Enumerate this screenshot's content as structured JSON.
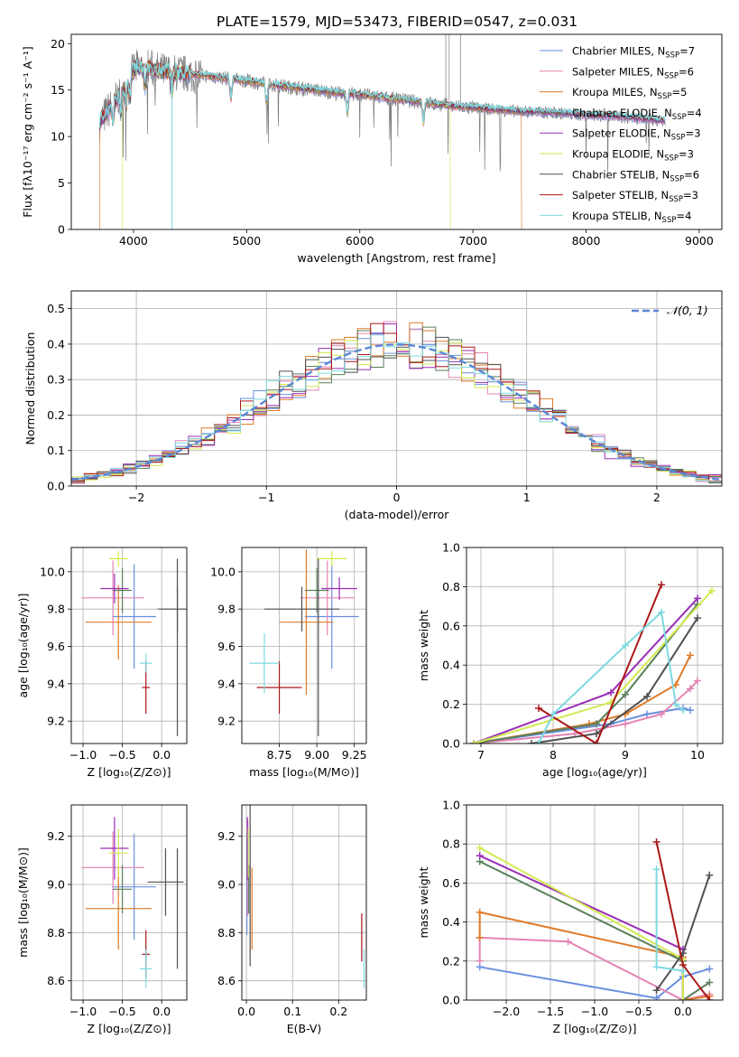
{
  "figure": {
    "title": "PLATE=1579, MJD=53473, FIBERID=0547, z=0.031"
  },
  "palette": [
    "#6a8fde",
    "#e483b4",
    "#e07a28",
    "#5a7f5a",
    "#9a2eb6",
    "#d2ea50",
    "#505050",
    "#aa1818",
    "#7ed9e0"
  ],
  "chart_data": [
    {
      "id": "spectrum",
      "type": "line",
      "title": "PLATE=1579, MJD=53473, FIBERID=0547, z=0.031",
      "xlabel": "wavelength [Angstrom, rest frame]",
      "ylabel": "Flux [fλ10⁻¹⁷ erg cm⁻² s⁻¹ A⁻¹]",
      "xlim": [
        3450,
        9200
      ],
      "ylim": [
        0,
        21
      ],
      "xticks": [
        4000,
        5000,
        6000,
        7000,
        8000,
        9000
      ],
      "yticks": [
        0,
        5,
        10,
        15,
        20
      ],
      "grid": false,
      "legend_position": "top-right",
      "data_continuum": {
        "x": [
          3700,
          3800,
          3900,
          4000,
          4100,
          4200,
          4400,
          4600,
          4800,
          5000,
          5200,
          5400,
          5600,
          5800,
          6000,
          6200,
          6400,
          6600,
          6800,
          7000,
          7200,
          7400,
          7600,
          7800,
          8000,
          8200,
          8400,
          8600,
          8700
        ],
        "y": [
          11.5,
          13.2,
          15.0,
          17.2,
          17.6,
          17.1,
          16.8,
          16.6,
          16.3,
          16.0,
          15.6,
          15.3,
          15.0,
          14.7,
          14.5,
          14.2,
          13.9,
          13.6,
          13.3,
          13.1,
          12.9,
          12.7,
          12.6,
          12.5,
          12.3,
          12.2,
          12.0,
          11.8,
          11.7
        ]
      },
      "series": [
        {
          "name": "Chabrier MILES, N_SSP=7",
          "name_main": "Chabrier MILES, N",
          "name_sub": "SSP",
          "name_tail": "=7"
        },
        {
          "name": "Salpeter MILES, N_SSP=6",
          "name_main": "Salpeter MILES, N",
          "name_sub": "SSP",
          "name_tail": "=6"
        },
        {
          "name": "Kroupa MILES, N_SSP=5",
          "name_main": "Kroupa MILES, N",
          "name_sub": "SSP",
          "name_tail": "=5"
        },
        {
          "name": "Chabrier ELODIE, N_SSP=4",
          "name_main": "Chabrier ELODIE, N",
          "name_sub": "SSP",
          "name_tail": "=4"
        },
        {
          "name": "Salpeter ELODIE, N_SSP=3",
          "name_main": "Salpeter ELODIE, N",
          "name_sub": "SSP",
          "name_tail": "=3"
        },
        {
          "name": "Kroupa ELODIE, N_SSP=3",
          "name_main": "Kroupa ELODIE, N",
          "name_sub": "SSP",
          "name_tail": "=3"
        },
        {
          "name": "Chabrier STELIB, N_SSP=6",
          "name_main": "Chabrier STELIB, N",
          "name_sub": "SSP",
          "name_tail": "=6"
        },
        {
          "name": "Salpeter STELIB, N_SSP=3",
          "name_main": "Salpeter STELIB, N",
          "name_sub": "SSP",
          "name_tail": "=3"
        },
        {
          "name": "Kroupa STELIB, N_SSP=4",
          "name_main": "Kroupa STELIB, N",
          "name_sub": "SSP",
          "name_tail": "=4"
        }
      ],
      "model_cutoffs": [
        {
          "series": 5,
          "x_start": 3900,
          "x_end": 6800
        },
        {
          "series": 2,
          "x_start": 3700,
          "x_end": 7430
        }
      ]
    },
    {
      "id": "residuals",
      "type": "step",
      "xlabel": "(data-model)/error",
      "ylabel": "Normed distribution",
      "xlim": [
        -2.5,
        2.5
      ],
      "ylim": [
        0,
        0.55
      ],
      "xticks": [
        -2,
        -1,
        0,
        1,
        2
      ],
      "yticks": [
        0.0,
        0.1,
        0.2,
        0.3,
        0.4,
        0.5
      ],
      "grid": true,
      "legend_position": "top-right",
      "legend_label": "𝒩(0, 1)",
      "bin_width": 0.1
    },
    {
      "id": "age_vs_Z",
      "type": "errorbar",
      "xlabel": "Z [log₁₀(Z/Z⊙)]",
      "ylabel": "age  [log₁₀(age/yr)]",
      "xlim": [
        -1.15,
        0.32
      ],
      "ylim": [
        9.08,
        10.13
      ],
      "xticks": [
        -1.0,
        -0.5,
        0.0
      ],
      "yticks": [
        9.2,
        9.4,
        9.6,
        9.8,
        10.0
      ],
      "grid": true,
      "points": [
        {
          "series": 0,
          "x": -0.35,
          "xerr": 0.28,
          "y": 9.76,
          "yerr": 0.28
        },
        {
          "series": 1,
          "x": -0.62,
          "xerr": 0.4,
          "y": 9.86,
          "yerr": 0.2
        },
        {
          "series": 2,
          "x": -0.55,
          "xerr": 0.42,
          "y": 9.73,
          "yerr": 0.2
        },
        {
          "series": 3,
          "x": -0.5,
          "xerr": 0.12,
          "y": 9.9,
          "yerr": 0.12
        },
        {
          "series": 4,
          "x": -0.6,
          "xerr": 0.18,
          "y": 9.91,
          "yerr": 0.08
        },
        {
          "series": 5,
          "x": -0.55,
          "xerr": 0.12,
          "y": 10.07,
          "yerr": 0.04
        },
        {
          "series": 6,
          "x": 0.2,
          "xerr": 0.25,
          "y": 9.8,
          "yerr": 0.12
        },
        {
          "series": 7,
          "x": -0.2,
          "xerr": 0.05,
          "y": 9.38,
          "yerr": 0.14
        },
        {
          "series": 8,
          "x": -0.2,
          "xerr": 0.08,
          "y": 9.51,
          "yerr": 0.05
        }
      ],
      "extra_vertical": [
        {
          "series": 6,
          "x": 0.2,
          "y0": 9.12,
          "y1": 10.07
        }
      ]
    },
    {
      "id": "age_vs_mass",
      "type": "errorbar",
      "xlabel": "mass [log₁₀(M/M⊙)]",
      "ylabel": "",
      "xlim": [
        8.5,
        9.33
      ],
      "ylim": [
        9.08,
        10.13
      ],
      "xticks": [
        8.75,
        9.0,
        9.25
      ],
      "yticks": [
        9.2,
        9.4,
        9.6,
        9.8,
        10.0
      ],
      "grid": true,
      "points": [
        {
          "series": 0,
          "x": 9.1,
          "xerr": 0.18,
          "y": 9.76,
          "yerr": 0.28
        },
        {
          "series": 1,
          "x": 9.07,
          "xerr": 0.18,
          "y": 9.86,
          "yerr": 0.2
        },
        {
          "series": 2,
          "x": 8.93,
          "xerr": 0.18,
          "y": 9.73,
          "yerr": 0.39
        },
        {
          "series": 3,
          "x": 9.0,
          "xerr": 0.08,
          "y": 9.9,
          "yerr": 0.12
        },
        {
          "series": 4,
          "x": 9.15,
          "xerr": 0.12,
          "y": 9.91,
          "yerr": 0.06
        },
        {
          "series": 5,
          "x": 9.1,
          "xerr": 0.1,
          "y": 10.07,
          "yerr": 0.04
        },
        {
          "series": 6,
          "x": 8.9,
          "xerr": 0.25,
          "y": 9.8,
          "yerr": 0.12
        },
        {
          "series": 7,
          "x": 8.75,
          "xerr": 0.15,
          "y": 9.38,
          "yerr": 0.14
        },
        {
          "series": 8,
          "x": 8.65,
          "xerr": 0.1,
          "y": 9.51,
          "yerr": 0.16
        }
      ],
      "extra_vertical": [
        {
          "series": 6,
          "x": 9.01,
          "y0": 9.12,
          "y1": 10.07
        }
      ]
    },
    {
      "id": "mass_weight_vs_age",
      "type": "line",
      "xlabel": "age  [log₁₀(age/yr)]",
      "ylabel": "mass weight",
      "xlim": [
        6.8,
        10.35
      ],
      "ylim": [
        0,
        1
      ],
      "xticks": [
        7,
        8,
        9,
        10
      ],
      "yticks": [
        0.0,
        0.2,
        0.4,
        0.6,
        0.8,
        1.0
      ],
      "grid": true,
      "series": [
        {
          "series": 0,
          "x": [
            6.9,
            8.8,
            9.3,
            9.8,
            9.9
          ],
          "y": [
            0.0,
            0.1,
            0.15,
            0.18,
            0.17
          ]
        },
        {
          "series": 1,
          "x": [
            6.9,
            8.3,
            9.0,
            9.5,
            9.9,
            10.0
          ],
          "y": [
            0.0,
            0.05,
            0.1,
            0.15,
            0.28,
            0.32
          ]
        },
        {
          "series": 2,
          "x": [
            6.9,
            8.5,
            9.0,
            9.7,
            9.9
          ],
          "y": [
            0.0,
            0.1,
            0.15,
            0.3,
            0.45
          ]
        },
        {
          "series": 3,
          "x": [
            6.9,
            8.6,
            9.0,
            10.0
          ],
          "y": [
            0.0,
            0.1,
            0.25,
            0.71
          ]
        },
        {
          "series": 4,
          "x": [
            6.9,
            8.8,
            10.0
          ],
          "y": [
            0.0,
            0.26,
            0.74
          ]
        },
        {
          "series": 5,
          "x": [
            6.9,
            8.8,
            10.2
          ],
          "y": [
            0.0,
            0.21,
            0.78
          ]
        },
        {
          "series": 6,
          "x": [
            7.7,
            8.6,
            9.3,
            10.0
          ],
          "y": [
            0.0,
            0.05,
            0.24,
            0.64
          ]
        },
        {
          "series": 7,
          "x": [
            7.8,
            8.6,
            9.5
          ],
          "y": [
            0.18,
            0.0,
            0.81
          ]
        },
        {
          "series": 8,
          "x": [
            7.8,
            8.0,
            9.0,
            9.5,
            9.7,
            9.8
          ],
          "y": [
            0.0,
            0.15,
            0.5,
            0.67,
            0.2,
            0.17
          ]
        }
      ]
    },
    {
      "id": "mass_vs_Z",
      "type": "errorbar",
      "xlabel": "Z [log₁₀(Z/Z⊙)]",
      "ylabel": "mass [log₁₀(M/M⊙)]",
      "xlim": [
        -1.15,
        0.32
      ],
      "ylim": [
        8.52,
        9.33
      ],
      "xticks": [
        -1.0,
        -0.5,
        0.0
      ],
      "yticks": [
        8.6,
        8.8,
        9.0,
        9.2
      ],
      "grid": true,
      "points": [
        {
          "series": 0,
          "x": -0.35,
          "xerr": 0.28,
          "y": 8.99,
          "yerr": 0.22
        },
        {
          "series": 1,
          "x": -0.62,
          "xerr": 0.4,
          "y": 9.07,
          "yerr": 0.15
        },
        {
          "series": 2,
          "x": -0.55,
          "xerr": 0.42,
          "y": 8.9,
          "yerr": 0.17
        },
        {
          "series": 3,
          "x": -0.5,
          "xerr": 0.12,
          "y": 8.98,
          "yerr": 0.1
        },
        {
          "series": 4,
          "x": -0.6,
          "xerr": 0.18,
          "y": 9.15,
          "yerr": 0.13
        },
        {
          "series": 5,
          "x": -0.55,
          "xerr": 0.12,
          "y": 9.13,
          "yerr": 0.1
        },
        {
          "series": 6,
          "x": 0.05,
          "xerr": 0.23,
          "y": 9.01,
          "yerr": 0.14
        },
        {
          "series": 7,
          "x": -0.2,
          "xerr": 0.05,
          "y": 8.71,
          "yerr": 0.1
        },
        {
          "series": 8,
          "x": -0.2,
          "xerr": 0.08,
          "y": 8.65,
          "yerr": 0.08
        }
      ],
      "extra_vertical": [
        {
          "series": 6,
          "x": 0.2,
          "y0": 8.65,
          "y1": 9.15
        }
      ]
    },
    {
      "id": "mass_vs_ebv",
      "type": "errorbar",
      "xlabel": "E(B-V)",
      "ylabel": "",
      "xlim": [
        -0.01,
        0.26
      ],
      "ylim": [
        8.52,
        9.33
      ],
      "xticks": [
        0.0,
        0.1,
        0.2
      ],
      "yticks": [
        8.6,
        8.8,
        9.0,
        9.2
      ],
      "grid": true,
      "points": [
        {
          "series": 0,
          "x": 0.001,
          "xerr": 0.0,
          "y": 8.99,
          "yerr": 0.2
        },
        {
          "series": 1,
          "x": 0.003,
          "xerr": 0.0,
          "y": 9.07,
          "yerr": 0.2
        },
        {
          "series": 2,
          "x": 0.012,
          "xerr": 0.0,
          "y": 8.9,
          "yerr": 0.17
        },
        {
          "series": 3,
          "x": 0.005,
          "xerr": 0.0,
          "y": 8.98,
          "yerr": 0.1
        },
        {
          "series": 4,
          "x": 0.002,
          "xerr": 0.0,
          "y": 9.15,
          "yerr": 0.13
        },
        {
          "series": 5,
          "x": 0.004,
          "xerr": 0.0,
          "y": 9.13,
          "yerr": 0.1
        },
        {
          "series": 6,
          "x": 0.008,
          "xerr": 0.0,
          "y": 9.01,
          "yerr": 0.35
        },
        {
          "series": 7,
          "x": 0.25,
          "xerr": 0.0,
          "y": 8.78,
          "yerr": 0.1
        },
        {
          "series": 8,
          "x": 0.255,
          "xerr": 0.0,
          "y": 8.65,
          "yerr": 0.08
        }
      ],
      "extra_vertical": []
    },
    {
      "id": "mass_weight_vs_Z",
      "type": "line",
      "xlabel": "Z [log₁₀(Z/Z⊙)]",
      "ylabel": "mass weight",
      "xlim": [
        -2.45,
        0.45
      ],
      "ylim": [
        0,
        1
      ],
      "xticks": [
        -2.0,
        -1.5,
        -1.0,
        -0.5,
        0.0
      ],
      "yticks": [
        0.0,
        0.2,
        0.4,
        0.6,
        0.8,
        1.0
      ],
      "grid": true,
      "series": [
        {
          "series": 0,
          "x": [
            -2.3,
            -0.3,
            0.0,
            0.3
          ],
          "y": [
            0.17,
            0.01,
            0.12,
            0.16
          ]
        },
        {
          "series": 1,
          "x": [
            -2.3,
            -2.3,
            -1.3,
            0.0,
            0.3
          ],
          "y": [
            0.2,
            0.32,
            0.3,
            0.0,
            0.03
          ]
        },
        {
          "series": 2,
          "x": [
            -2.3,
            -2.3,
            0.0,
            0.0,
            0.3
          ],
          "y": [
            0.32,
            0.45,
            0.22,
            0.0,
            0.02
          ]
        },
        {
          "series": 3,
          "x": [
            -2.3,
            0.0,
            0.0,
            0.3
          ],
          "y": [
            0.71,
            0.2,
            0.0,
            0.09
          ]
        },
        {
          "series": 4,
          "x": [
            -2.3,
            0.0,
            0.0
          ],
          "y": [
            0.74,
            0.26,
            0.0
          ]
        },
        {
          "series": 5,
          "x": [
            -2.3,
            0.0,
            0.0
          ],
          "y": [
            0.78,
            0.21,
            0.0
          ]
        },
        {
          "series": 6,
          "x": [
            -0.3,
            0.0,
            0.3
          ],
          "y": [
            0.05,
            0.24,
            0.64
          ]
        },
        {
          "series": 7,
          "x": [
            -0.3,
            0.0,
            0.3
          ],
          "y": [
            0.81,
            0.18,
            0.0
          ]
        },
        {
          "series": 8,
          "x": [
            -0.3,
            -0.3,
            0.0
          ],
          "y": [
            0.67,
            0.17,
            0.15
          ]
        }
      ]
    }
  ]
}
